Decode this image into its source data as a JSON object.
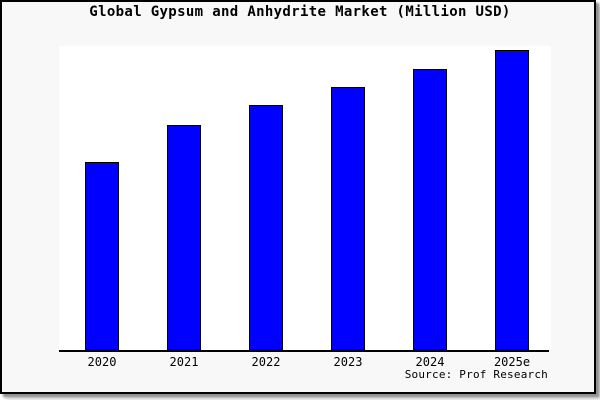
{
  "chart_data": {
    "type": "bar",
    "title": "Global Gypsum and Anhydrite Market (Million USD)",
    "categories": [
      "2020",
      "2021",
      "2022",
      "2023",
      "2024",
      "2025e"
    ],
    "values": [
      62.6,
      75.0,
      81.6,
      87.6,
      93.7,
      100.0
    ],
    "value_units": "relative index estimated from bar heights (y-axis unlabeled; 2025e = 100)",
    "xlabel": "",
    "ylabel": "",
    "ylim": [
      0,
      101.4
    ],
    "grid": false,
    "legend": null,
    "bar_fill_color": "#0000ff",
    "bar_edge_color": "#000000",
    "source_label": "Source: Prof Research"
  },
  "colors": {
    "canvas_background": "#f8f8f8",
    "plot_background": "#ffffff",
    "frame_border": "#000000",
    "axis_line": "#000000",
    "title_text": "#000000"
  }
}
